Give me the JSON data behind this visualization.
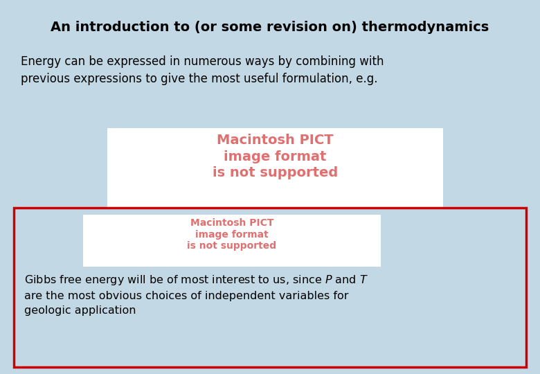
{
  "title": "An introduction to (or some revision on) thermodynamics",
  "title_fontsize": 14,
  "body_text": "Energy can be expressed in numerous ways by combining with\nprevious expressions to give the most useful formulation, e.g.",
  "body_fontsize": 12,
  "pict_text1": "Macintosh PICT\nimage format\nis not supported",
  "pict_text2": "Macintosh PICT\nimage format\nis not supported",
  "pict_color": "#E07070",
  "gibbs_line1": "Gibbs free energy will be of most interest to us, since ",
  "gibbs_P": "P",
  "gibbs_and": " and ",
  "gibbs_T": "T",
  "gibbs_line2": "\nare the most obvious choices of independent variables for\ngeologic application",
  "gibbs_fontsize": 11.5,
  "red_box_color": "#CC0000",
  "bg_color": "#C2D8E4",
  "white": "#FFFFFF"
}
